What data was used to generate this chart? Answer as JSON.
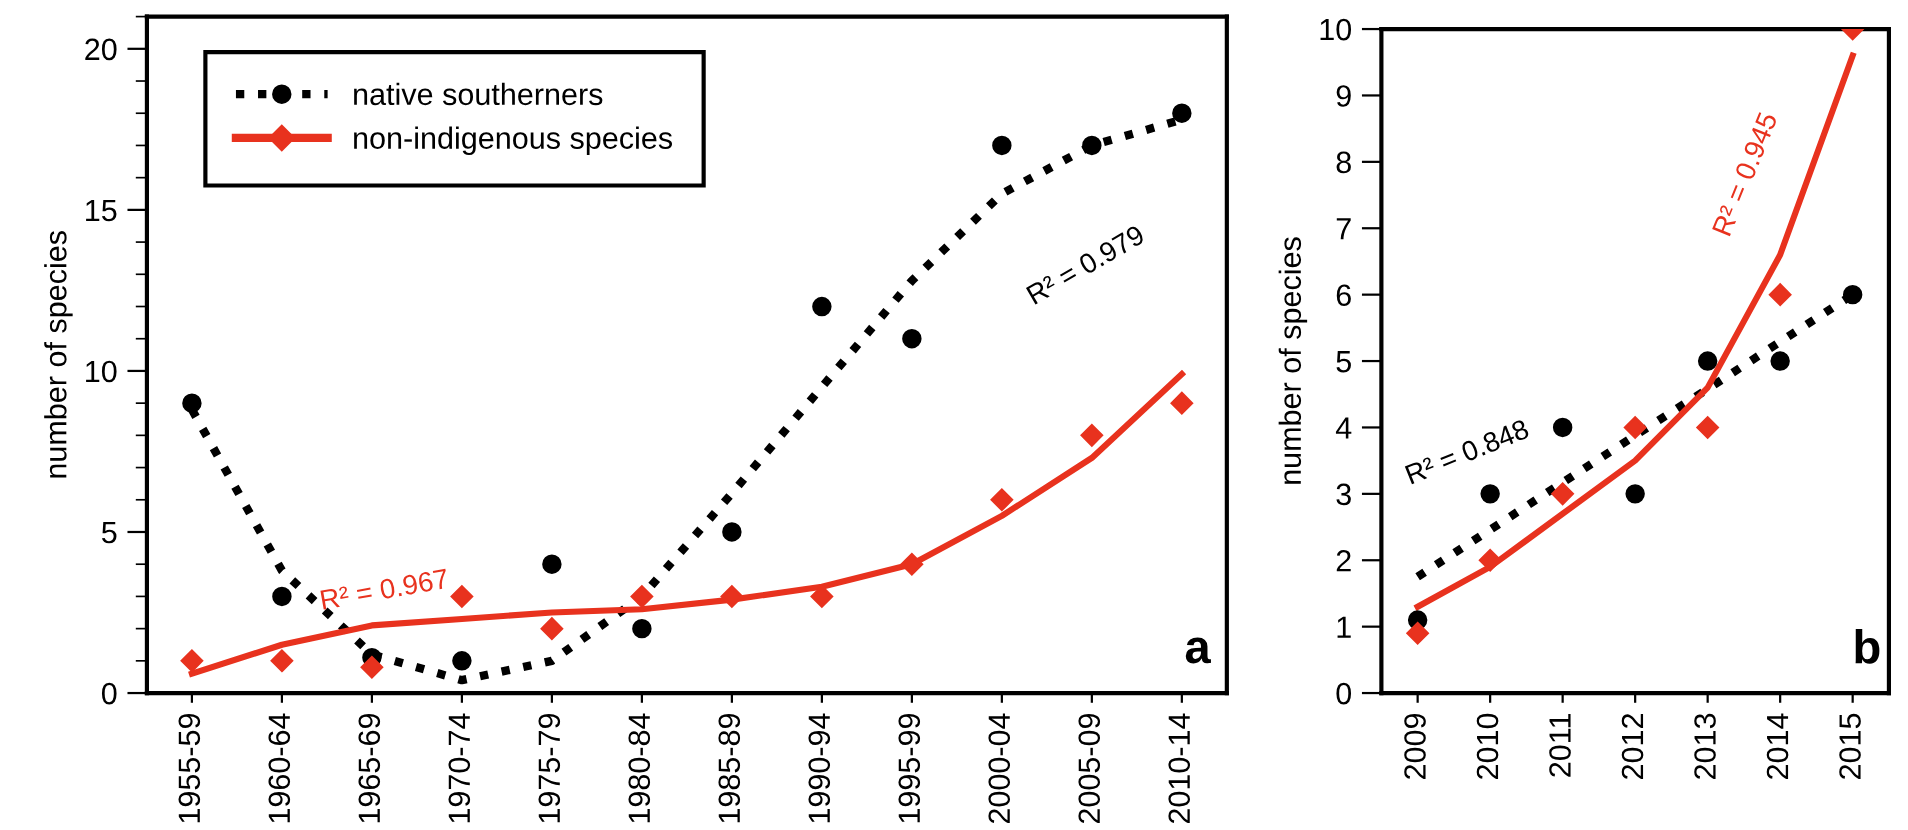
{
  "chart_data": [
    {
      "type": "scatter",
      "ylabel": "number of species",
      "categories": [
        "1955-59",
        "1960-64",
        "1965-69",
        "1970-74",
        "1975-79",
        "1980-84",
        "1985-89",
        "1990-94",
        "1995-99",
        "2000-04",
        "2005-09",
        "2010-14"
      ],
      "series": [
        {
          "name": "native southerners",
          "color": "#000000",
          "marker": "circle",
          "values": [
            9,
            3,
            1.1,
            1,
            4,
            2,
            5,
            12,
            11,
            17,
            17,
            18
          ]
        },
        {
          "name": "non-indigenous species",
          "color": "#e8321e",
          "marker": "diamond",
          "values": [
            1,
            1,
            0.8,
            3,
            2,
            3,
            3,
            3,
            4,
            6,
            8,
            9
          ]
        },
        {
          "type": "line",
          "color": "#000000",
          "line_style": "dotted",
          "values": [
            8.8,
            3.8,
            1.2,
            0.4,
            1.0,
            3.0,
            6.2,
            9.5,
            12.8,
            15.5,
            17.0,
            17.8
          ]
        },
        {
          "type": "line",
          "color": "#e8321e",
          "line_style": "solid",
          "values": [
            0.6,
            1.5,
            2.1,
            2.3,
            2.5,
            2.6,
            2.9,
            3.3,
            4.0,
            5.5,
            7.3,
            9.9
          ]
        }
      ],
      "ylim": [
        0,
        21
      ],
      "yticks": [
        0,
        5,
        10,
        15,
        20
      ],
      "grid": false,
      "legend": "top left",
      "annotations": [
        "R² = 0.967",
        "R² = 0.979",
        "a"
      ]
    },
    {
      "type": "scatter",
      "ylabel": "number of species",
      "categories": [
        "2009",
        "2010",
        "2011",
        "2012",
        "2013",
        "2014",
        "2015"
      ],
      "series": [
        {
          "color": "#000000",
          "marker": "circle",
          "values": [
            1.1,
            3,
            4,
            3,
            5,
            5,
            6
          ]
        },
        {
          "color": "#e8321e",
          "marker": "diamond",
          "values": [
            0.9,
            2,
            3,
            4,
            4,
            6,
            10
          ]
        },
        {
          "type": "line",
          "color": "#000000",
          "line_style": "dotted",
          "values": [
            1.75,
            2.46,
            3.17,
            3.88,
            4.58,
            5.29,
            6.0
          ]
        },
        {
          "type": "line",
          "color": "#e8321e",
          "line_style": "solid",
          "values": [
            1.3,
            1.9,
            2.7,
            3.5,
            4.6,
            6.6,
            9.6
          ]
        }
      ],
      "ylim": [
        0,
        10
      ],
      "yticks": [
        0,
        1,
        2,
        3,
        4,
        5,
        6,
        7,
        8,
        9,
        10
      ],
      "grid": false,
      "legend": false,
      "annotations": [
        "R² = 0.848",
        "R² = 0.945",
        "b"
      ]
    }
  ]
}
